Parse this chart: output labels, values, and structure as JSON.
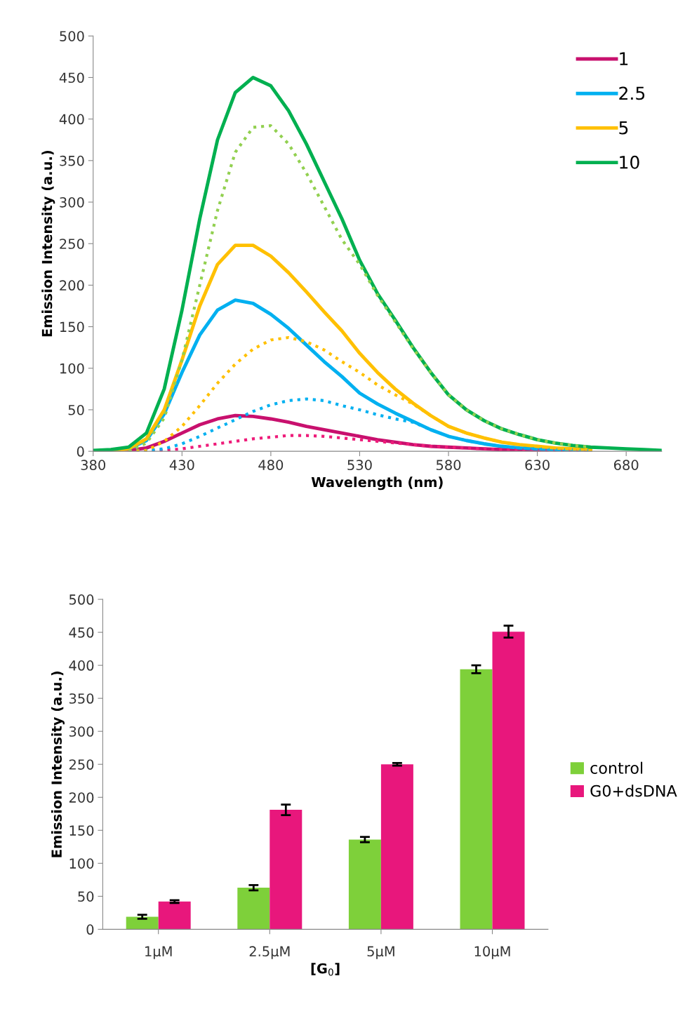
{
  "chart_data": [
    {
      "type": "line",
      "xlabel": "Wavelength (nm)",
      "ylabel": "Emission Intensity (a.u.)",
      "xlim": [
        380,
        700
      ],
      "ylim": [
        0,
        500
      ],
      "xticks": [
        380,
        430,
        480,
        530,
        580,
        630,
        680
      ],
      "yticks": [
        0,
        50,
        100,
        150,
        200,
        250,
        300,
        350,
        400,
        450,
        500
      ],
      "grid": false,
      "legend": "top right",
      "marker": "none",
      "line_style": "solid",
      "x": [
        380,
        390,
        400,
        410,
        420,
        430,
        440,
        450,
        460,
        470,
        480,
        490,
        500,
        510,
        520,
        530,
        540,
        550,
        560,
        570,
        580,
        590,
        600,
        610,
        620,
        630,
        640,
        650,
        660,
        670,
        680,
        690,
        700
      ],
      "series": [
        {
          "name": "1",
          "color": "#c8106e",
          "values": [
            0,
            0,
            1,
            4,
            12,
            22,
            32,
            39,
            43,
            42,
            39,
            35,
            30,
            26,
            22,
            18,
            14,
            11,
            8,
            6,
            5,
            4,
            3,
            2,
            2,
            1,
            1,
            1,
            0,
            null,
            null,
            null,
            null
          ]
        },
        {
          "name": "2.5",
          "color": "#00b0f0",
          "values": [
            0,
            0,
            3,
            13,
            45,
            95,
            140,
            170,
            182,
            178,
            165,
            148,
            128,
            108,
            90,
            70,
            57,
            46,
            36,
            26,
            18,
            13,
            9,
            6,
            4,
            3,
            2,
            2,
            1,
            null,
            null,
            null,
            null
          ]
        },
        {
          "name": "5",
          "color": "#ffc000",
          "values": [
            0,
            0,
            3,
            15,
            50,
            110,
            175,
            225,
            248,
            248,
            235,
            215,
            192,
            168,
            145,
            118,
            95,
            75,
            58,
            43,
            30,
            22,
            16,
            11,
            8,
            6,
            4,
            3,
            2,
            null,
            null,
            null,
            null
          ]
        },
        {
          "name": "10",
          "color": "#00b050",
          "values": [
            1,
            2,
            5,
            22,
            75,
            170,
            280,
            375,
            432,
            450,
            440,
            410,
            370,
            325,
            280,
            230,
            190,
            158,
            125,
            95,
            68,
            50,
            37,
            27,
            20,
            14,
            10,
            7,
            5,
            4,
            3,
            2,
            1
          ]
        },
        {
          "color": "#ee1c7a",
          "line_style": "dotted",
          "values": [
            null,
            null,
            0,
            0,
            1,
            3,
            6,
            9,
            12,
            15,
            17,
            19,
            19,
            18,
            16,
            14,
            12,
            10,
            8,
            6,
            5,
            4,
            3,
            2,
            2,
            1,
            1,
            1,
            0,
            null,
            null,
            null,
            null
          ]
        },
        {
          "color": "#00b0f0",
          "line_style": "dotted",
          "values": [
            null,
            null,
            0,
            1,
            3,
            9,
            18,
            28,
            38,
            48,
            56,
            61,
            63,
            61,
            55,
            50,
            44,
            39,
            35,
            26,
            18,
            13,
            9,
            6,
            4,
            3,
            2,
            2,
            1,
            null,
            null,
            null,
            null
          ]
        },
        {
          "color": "#ffc000",
          "line_style": "dotted",
          "values": [
            null,
            null,
            0,
            1,
            12,
            30,
            55,
            82,
            105,
            123,
            134,
            137,
            132,
            122,
            108,
            95,
            80,
            68,
            57,
            43,
            30,
            22,
            16,
            11,
            8,
            6,
            4,
            3,
            2,
            null,
            null,
            null,
            null
          ]
        },
        {
          "color": "#92d050",
          "line_style": "dotted",
          "values": [
            null,
            null,
            0,
            10,
            40,
            110,
            200,
            290,
            360,
            390,
            392,
            370,
            335,
            295,
            255,
            225,
            188,
            156,
            124,
            95,
            68,
            50,
            37,
            27,
            20,
            14,
            10,
            7,
            5,
            null,
            null,
            null,
            null
          ]
        }
      ]
    },
    {
      "type": "bar",
      "xlabel": "[G$_{0}$]",
      "ylabel": "Emission Intensity (a.u.)",
      "ylim": [
        0,
        500
      ],
      "yticks": [
        0,
        50,
        100,
        150,
        200,
        250,
        300,
        350,
        400,
        450,
        500
      ],
      "grid": false,
      "legend": "right",
      "categories": [
        "1µM",
        "2.5µM",
        "5µM",
        "10µM"
      ],
      "series": [
        {
          "name": "control",
          "color": "#7ed03a",
          "values": [
            19,
            63,
            136,
            394
          ],
          "errors": [
            3,
            4,
            4,
            6
          ]
        },
        {
          "name": "G0+dsDNA",
          "color": "#e8177c",
          "values": [
            42,
            181,
            250,
            451
          ],
          "errors": [
            2,
            8,
            2,
            9
          ]
        }
      ]
    }
  ]
}
